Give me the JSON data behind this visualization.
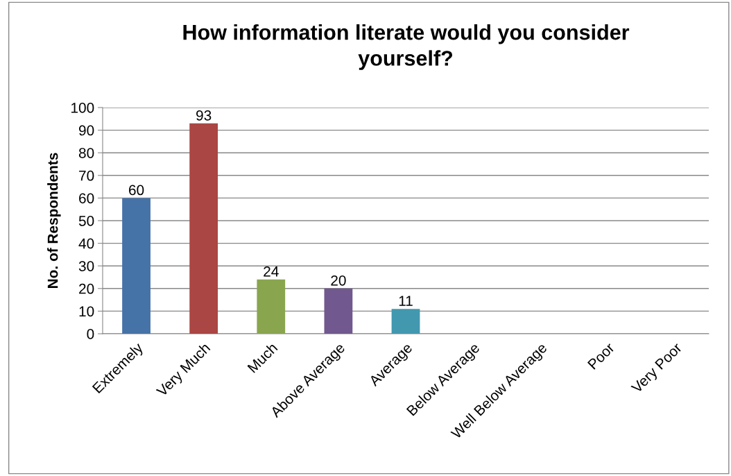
{
  "chart_data": {
    "type": "bar",
    "title": "How information literate would you consider\nyourself?",
    "ylabel": "No. of Respondents",
    "categories": [
      "Extremely",
      "Very Much",
      "Much",
      "Above Average",
      "Average",
      "Below Average",
      "Well Below Average",
      "Poor",
      "Very Poor"
    ],
    "values": [
      60,
      93,
      24,
      20,
      11,
      0,
      0,
      0,
      0
    ],
    "colors": [
      "#4572a7",
      "#aa4643",
      "#89a54e",
      "#71588f",
      "#4198af",
      "#db843d",
      "#93a9cf",
      "#d19392",
      "#b9cd96"
    ],
    "value_labels": [
      "60",
      "93",
      "24",
      "20",
      "11",
      null,
      null,
      null,
      null
    ],
    "ylim": [
      0,
      100
    ],
    "yticks": [
      0,
      10,
      20,
      30,
      40,
      50,
      60,
      70,
      80,
      90,
      100
    ],
    "grid": "y",
    "legend": false
  }
}
